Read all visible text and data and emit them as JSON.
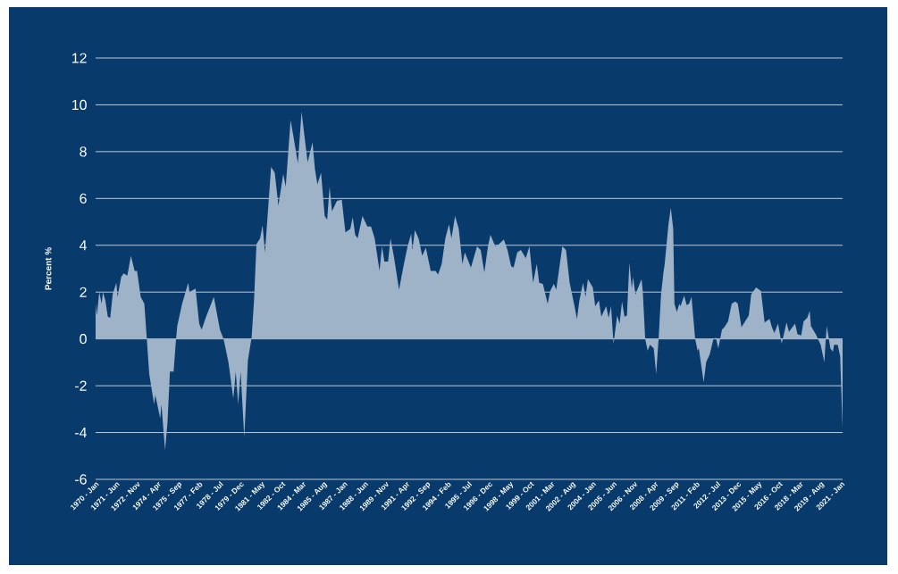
{
  "chart_data": {
    "type": "area",
    "ylabel": "Percent %",
    "color": "#9fb3c8",
    "grid": "y",
    "xlim": [
      "1970-01",
      "2021-02"
    ],
    "ylim": [
      -6,
      12
    ],
    "yticks": [
      -6,
      -4,
      -2,
      0,
      2,
      4,
      6,
      8,
      10,
      12
    ],
    "xticks": [
      {
        "value": "1970-01",
        "label": "1970 - Jan"
      },
      {
        "value": "1971-06",
        "label": "1971 - Jun"
      },
      {
        "value": "1972-11",
        "label": "1972 - Nov"
      },
      {
        "value": "1974-04",
        "label": "1974 - Apr"
      },
      {
        "value": "1975-09",
        "label": "1975 - Sep"
      },
      {
        "value": "1977-02",
        "label": "1977 - Feb"
      },
      {
        "value": "1978-07",
        "label": "1978 - Jul"
      },
      {
        "value": "1979-12",
        "label": "1979 - Dec"
      },
      {
        "value": "1981-05",
        "label": "1981 - May"
      },
      {
        "value": "1982-10",
        "label": "1982 - Oct"
      },
      {
        "value": "1984-03",
        "label": "1984 - Mar"
      },
      {
        "value": "1985-08",
        "label": "1985 - Aug"
      },
      {
        "value": "1987-01",
        "label": "1987 - Jan"
      },
      {
        "value": "1988-06",
        "label": "1988 - Jun"
      },
      {
        "value": "1989-11",
        "label": "1989 - Nov"
      },
      {
        "value": "1991-04",
        "label": "1991 - Apr"
      },
      {
        "value": "1992-09",
        "label": "1992 - Sep"
      },
      {
        "value": "1994-02",
        "label": "1994 - Feb"
      },
      {
        "value": "1995-07",
        "label": "1995 - Jul"
      },
      {
        "value": "1996-12",
        "label": "1996 - Dec"
      },
      {
        "value": "1998-05",
        "label": "1998 - May"
      },
      {
        "value": "1999-10",
        "label": "1999 - Oct"
      },
      {
        "value": "2001-03",
        "label": "2001 - Mar"
      },
      {
        "value": "2002-08",
        "label": "2002 - Aug"
      },
      {
        "value": "2004-01",
        "label": "2004 - Jan"
      },
      {
        "value": "2005-06",
        "label": "2005 - Jun"
      },
      {
        "value": "2006-11",
        "label": "2006 - Nov"
      },
      {
        "value": "2008-04",
        "label": "2008 - Apr"
      },
      {
        "value": "2009-09",
        "label": "2009 - Sep"
      },
      {
        "value": "2011-02",
        "label": "2011 - Feb"
      },
      {
        "value": "2012-07",
        "label": "2012 - Jul"
      },
      {
        "value": "2013-12",
        "label": "2013 - Dec"
      },
      {
        "value": "2015-05",
        "label": "2015 - May"
      },
      {
        "value": "2016-10",
        "label": "2016 - Oct"
      },
      {
        "value": "2018-03",
        "label": "2018 - Mar"
      },
      {
        "value": "2019-08",
        "label": "2019 - Aug"
      },
      {
        "value": "2021-01",
        "label": "2021 - Jan"
      }
    ],
    "x": [
      "1970-01",
      "1970-02",
      "1970-04",
      "1970-06",
      "1970-07",
      "1970-09",
      "1970-11",
      "1971-01",
      "1971-03",
      "1971-06",
      "1971-07",
      "1971-10",
      "1971-12",
      "1972-03",
      "1972-06",
      "1972-09",
      "1972-11",
      "1973-02",
      "1973-05",
      "1973-07",
      "1973-09",
      "1974-01",
      "1974-02",
      "1974-06",
      "1974-07",
      "1974-10",
      "1974-12",
      "1975-02",
      "1975-05",
      "1975-07",
      "1975-08",
      "1975-12",
      "1976-05",
      "1976-06",
      "1976-11",
      "1977-02",
      "1977-04",
      "1977-08",
      "1977-10",
      "1978-02",
      "1978-07",
      "1978-10",
      "1979-02",
      "1979-06",
      "1979-08",
      "1979-10",
      "1979-12",
      "1980-03",
      "1980-06",
      "1980-09",
      "1980-11",
      "1981-01",
      "1981-04",
      "1981-06",
      "1981-08",
      "1982-01",
      "1982-04",
      "1982-07",
      "1982-11",
      "1983-01",
      "1983-05",
      "1983-07",
      "1983-11",
      "1984-02",
      "1984-05",
      "1984-07",
      "1984-11",
      "1985-01",
      "1985-03",
      "1985-06",
      "1985-09",
      "1985-11",
      "1986-01",
      "1986-03",
      "1986-07",
      "1986-11",
      "1987-02",
      "1987-06",
      "1987-08",
      "1987-10",
      "1987-12",
      "1988-04",
      "1988-08",
      "1988-11",
      "1989-02",
      "1989-06",
      "1989-08",
      "1989-10",
      "1990-01",
      "1990-03",
      "1990-06",
      "1990-10",
      "1991-02",
      "1991-05",
      "1991-08",
      "1991-09",
      "1991-11",
      "1992-02",
      "1992-05",
      "1992-08",
      "1992-12",
      "1993-04",
      "1993-06",
      "1993-09",
      "1993-12",
      "1994-03",
      "1994-05",
      "1994-08",
      "1994-11",
      "1995-02",
      "1995-04",
      "1995-09",
      "1996-02",
      "1996-05",
      "1996-08",
      "1996-11",
      "1997-01",
      "1997-05",
      "1997-08",
      "1997-12",
      "1998-03",
      "1998-06",
      "1998-08",
      "1998-11",
      "1999-02",
      "1999-06",
      "1999-09",
      "1999-12",
      "2000-03",
      "2000-05",
      "2000-08",
      "2000-12",
      "2001-02",
      "2001-05",
      "2001-07",
      "2001-12",
      "2002-03",
      "2002-06",
      "2002-10",
      "2002-12",
      "2003-02",
      "2003-05",
      "2003-07",
      "2003-09",
      "2004-01",
      "2004-03",
      "2004-06",
      "2004-08",
      "2004-12",
      "2005-02",
      "2005-04",
      "2005-06",
      "2005-09",
      "2005-11",
      "2006-01",
      "2006-03",
      "2006-05",
      "2006-07",
      "2006-09",
      "2006-10",
      "2006-12",
      "2007-05",
      "2007-06",
      "2007-08",
      "2007-10",
      "2007-12",
      "2008-03",
      "2008-05",
      "2008-07",
      "2008-09",
      "2008-11",
      "2008-12",
      "2009-03",
      "2009-05",
      "2009-07",
      "2009-08",
      "2009-10",
      "2009-12",
      "2010-01",
      "2010-04",
      "2010-06",
      "2010-08",
      "2010-10",
      "2011-01",
      "2011-03",
      "2011-04",
      "2011-08",
      "2011-10",
      "2012-01",
      "2012-04",
      "2012-06",
      "2012-08",
      "2012-11",
      "2013-01",
      "2013-04",
      "2013-07",
      "2013-10",
      "2013-12",
      "2014-03",
      "2014-06",
      "2014-09",
      "2014-11",
      "2015-03",
      "2015-07",
      "2015-10",
      "2016-02",
      "2016-04",
      "2016-06",
      "2016-09",
      "2016-12",
      "2017-02",
      "2017-04",
      "2017-06",
      "2017-11",
      "2018-01",
      "2018-04",
      "2018-06",
      "2018-09",
      "2018-11",
      "2018-12",
      "2019-04",
      "2019-08",
      "2019-11",
      "2019-12",
      "2020-01",
      "2020-04",
      "2020-06",
      "2020-07",
      "2020-10",
      "2020-12",
      "2021-02"
    ],
    "values": [
      1.5,
      1.0,
      2.0,
      1.5,
      2.0,
      1.65,
      0.95,
      0.9,
      1.9,
      2.4,
      1.8,
      2.65,
      2.8,
      2.7,
      3.55,
      2.9,
      2.9,
      1.8,
      1.5,
      0,
      -1.5,
      -2.8,
      -2.4,
      -3.4,
      -2.8,
      -4.75,
      -3.55,
      -1.4,
      -1.4,
      0,
      0.55,
      1.5,
      2.4,
      2.0,
      2.15,
      0.65,
      0.4,
      1.0,
      1.25,
      1.8,
      0.4,
      0,
      -1.0,
      -2.55,
      -1.4,
      -2.8,
      -1.4,
      -4.2,
      -0.9,
      0.05,
      1.65,
      4.05,
      4.3,
      4.85,
      3.7,
      7.35,
      7.1,
      5.7,
      7.05,
      6.5,
      9.35,
      8.75,
      7.5,
      9.7,
      8.4,
      7.55,
      8.4,
      7.25,
      6.6,
      7.1,
      5.25,
      5.1,
      6.5,
      5.45,
      5.9,
      5.95,
      4.55,
      4.7,
      5.2,
      4.45,
      4.3,
      5.25,
      4.8,
      4.8,
      4.3,
      2.9,
      3.95,
      3.3,
      3.3,
      4.3,
      3.45,
      2.1,
      3.2,
      3.95,
      4.5,
      3.8,
      4.65,
      4.3,
      3.55,
      3.9,
      2.9,
      2.9,
      2.75,
      3.2,
      4.3,
      4.9,
      4.3,
      5.25,
      4.7,
      3.2,
      3.7,
      3.05,
      3.95,
      3.8,
      2.85,
      3.95,
      4.45,
      3.95,
      4.05,
      4.25,
      3.8,
      3.1,
      3.05,
      3.7,
      3.8,
      3.45,
      3.95,
      2.4,
      3.2,
      2.4,
      2.35,
      1.5,
      2.05,
      2.35,
      2.1,
      3.95,
      3.8,
      2.4,
      1.4,
      0.85,
      1.65,
      2.4,
      1.8,
      2.55,
      2.2,
      1.4,
      1.65,
      0.95,
      1.4,
      0.9,
      1.4,
      -0.2,
      1.0,
      0.65,
      1.6,
      0.95,
      1.0,
      3.25,
      2.15,
      2.65,
      1.9,
      2.55,
      2.05,
      0,
      -0.5,
      -0.25,
      -0.4,
      -1.5,
      0,
      1.9,
      2.85,
      3.2,
      4.85,
      5.6,
      4.7,
      1.5,
      1.15,
      1.5,
      1.4,
      1.85,
      1.45,
      1.5,
      1.8,
      0,
      -0.5,
      -0.4,
      -1.85,
      -1.0,
      -0.65,
      0,
      0.05,
      -0.4,
      0.4,
      0.5,
      0.75,
      1.5,
      1.6,
      1.5,
      0.5,
      0.75,
      1.0,
      1.9,
      2.2,
      2.05,
      0.7,
      0.85,
      0.5,
      0.25,
      0.65,
      -0.2,
      0.25,
      0.7,
      0.3,
      0.65,
      0.2,
      0.15,
      0.75,
      0.9,
      1.2,
      0.55,
      0.2,
      -0.25,
      -1.0,
      -0.15,
      0.55,
      -0.4,
      -0.55,
      -0.25,
      -0.25,
      -0.75,
      -3.85
    ]
  }
}
